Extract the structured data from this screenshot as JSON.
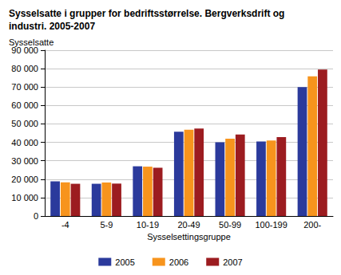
{
  "chart_data": {
    "type": "bar",
    "title": "Sysselsatte i grupper for bedriftsstørrelse. Bergverksdrift og industri. 2005-2007",
    "y_label": "Sysselsatte",
    "x_label": "Sysselsettingsgruppe",
    "categories": [
      "-4",
      "5-9",
      "10-19",
      "20-49",
      "50-99",
      "100-199",
      "200-"
    ],
    "series": [
      {
        "name": "2005",
        "color": "#2b3a9c",
        "values": [
          18800,
          17500,
          27000,
          45800,
          40000,
          40500,
          70000
        ]
      },
      {
        "name": "2006",
        "color": "#f7941d",
        "values": [
          18300,
          18200,
          26800,
          46800,
          42000,
          41000,
          75800
        ]
      },
      {
        "name": "2007",
        "color": "#9c1c20",
        "values": [
          17500,
          17600,
          26200,
          47500,
          44200,
          42800,
          79500
        ]
      }
    ],
    "ylim": [
      0,
      90000
    ],
    "yticks": [
      0,
      {
        "value": 10000,
        "label": "10 000"
      },
      {
        "value": 20000,
        "label": "20 000"
      },
      {
        "value": 30000,
        "label": "30 000"
      },
      {
        "value": 40000,
        "label": "40 000"
      },
      {
        "value": 50000,
        "label": "50 000"
      },
      {
        "value": 60000,
        "label": "60 000"
      },
      {
        "value": 70000,
        "label": "70 000"
      },
      {
        "value": 80000,
        "label": "80 000"
      },
      {
        "value": 90000,
        "label": "90 000"
      }
    ],
    "grid": true,
    "legend": "bottom"
  }
}
